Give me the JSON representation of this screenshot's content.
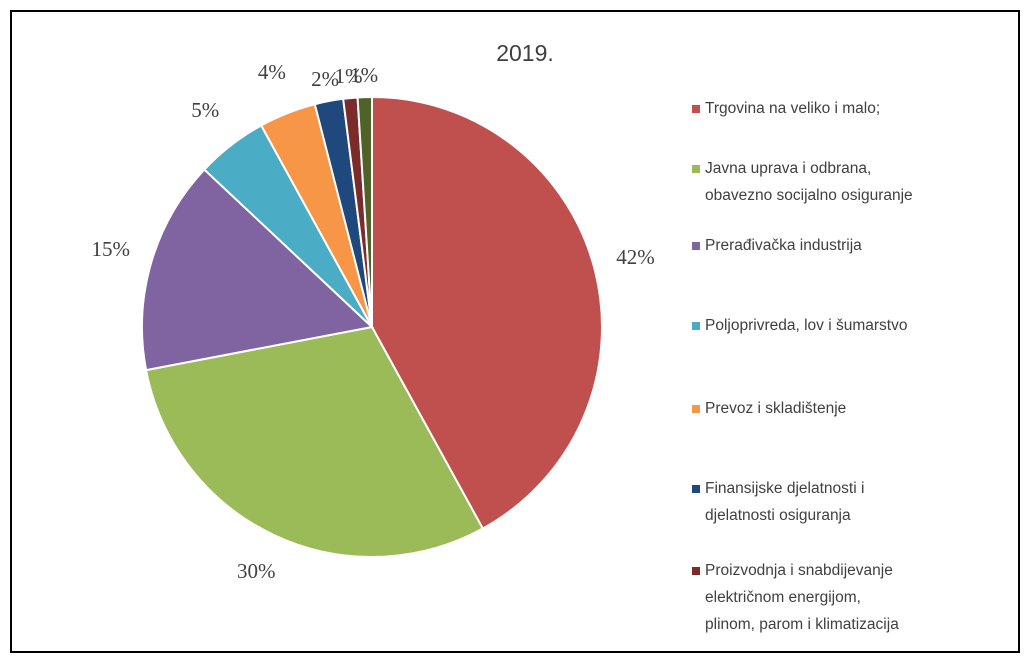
{
  "chart_data": {
    "type": "pie",
    "title": "2019.",
    "categories": [
      "Trgovina na veliko i malo;",
      "Javna uprava i odbrana,\nobavezno socijalno osiguranje",
      "Prerađivačka industrija",
      "Poljoprivreda, lov i šumarstvo",
      "Prevoz i skladištenje",
      "Finansijske djelatnosti i\ndjelatnosti osiguranja",
      "Proizvodnja i snabdijevanje\nelektričnom energijom,\nplinom, parom i klimatizacija",
      null
    ],
    "values": [
      42,
      30,
      15,
      5,
      4,
      2,
      1,
      1
    ],
    "value_labels": [
      "42%",
      "30%",
      "15%",
      "5%",
      "4%",
      "2%",
      "1%",
      "1%"
    ],
    "colors": [
      "#c0504d",
      "#9bbb59",
      "#8064a2",
      "#4bacc6",
      "#f79646",
      "#1f497d",
      "#7b2c2a",
      "#4f6228"
    ]
  }
}
